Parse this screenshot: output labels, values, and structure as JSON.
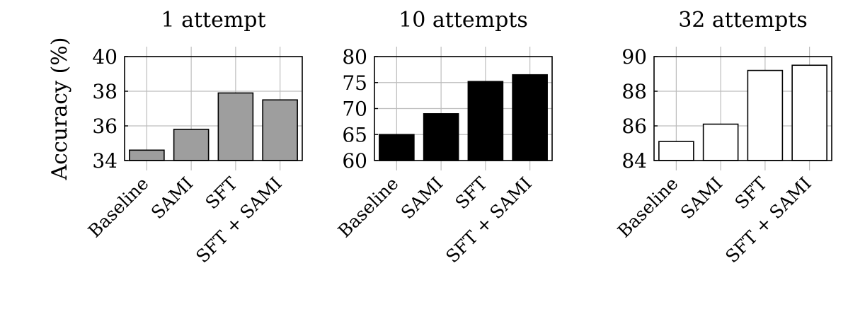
{
  "chart_data": [
    {
      "type": "bar",
      "title": "1 attempt",
      "ylabel": "Accuracy (%)",
      "categories": [
        "Baseline",
        "SAMI",
        "SFT",
        "SFT + SAMI"
      ],
      "values": [
        34.6,
        35.8,
        37.9,
        37.5
      ],
      "ylim": [
        34,
        40
      ],
      "yticks": [
        34,
        36,
        38,
        40
      ],
      "bar_color": "#9e9e9e",
      "grid": true
    },
    {
      "type": "bar",
      "title": "10 attempts",
      "ylabel": "",
      "categories": [
        "Baseline",
        "SAMI",
        "SFT",
        "SFT + SAMI"
      ],
      "values": [
        65.0,
        69.0,
        75.2,
        76.5
      ],
      "ylim": [
        60,
        80
      ],
      "yticks": [
        60,
        65,
        70,
        75,
        80
      ],
      "bar_color": "#000000",
      "grid": true
    },
    {
      "type": "bar",
      "title": "32 attempts",
      "ylabel": "",
      "categories": [
        "Baseline",
        "SAMI",
        "SFT",
        "SFT + SAMI"
      ],
      "values": [
        85.1,
        86.1,
        89.2,
        89.5
      ],
      "ylim": [
        84,
        90
      ],
      "yticks": [
        84,
        86,
        88,
        90
      ],
      "bar_color": "#ffffff",
      "grid": true
    }
  ]
}
